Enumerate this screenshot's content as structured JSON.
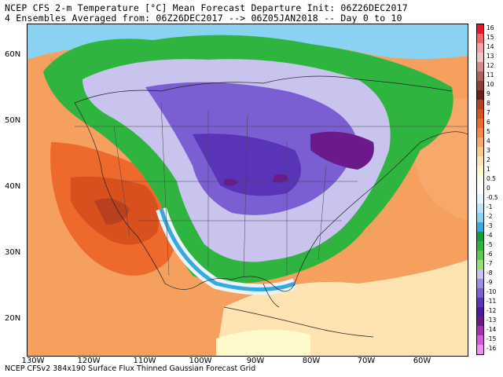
{
  "header": {
    "line1": "NCEP CFS 2-m Temperature [°C] Mean Forecast Departure Init: 06Z26DEC2017",
    "line2": "4 Ensembles Averaged from: 06Z26DEC2017 --> 06Z05JAN2018 -- Day 0 to 10"
  },
  "footer": "NCEP CFSv2 384x190 Surface Flux Thinned Gaussian Forecast Grid",
  "axes": {
    "lat_labels": [
      "60N",
      "50N",
      "40N",
      "30N",
      "20N"
    ],
    "lon_labels": [
      "130W",
      "120W",
      "110W",
      "100W",
      "90W",
      "80W",
      "70W",
      "60W"
    ]
  },
  "colorbar": {
    "labels": [
      "16",
      "15",
      "14",
      "13",
      "12",
      "11",
      "10",
      "9",
      "8",
      "7",
      "6",
      "5",
      "4",
      "3",
      "2",
      "1",
      "0.5",
      "0",
      "-0.5",
      "-1",
      "-2",
      "-3",
      "-4",
      "-5",
      "-6",
      "-7",
      "-8",
      "-9",
      "-10",
      "-11",
      "-12",
      "-13",
      "-14",
      "-15",
      "-16"
    ],
    "colors": [
      "#e8142c",
      "#f0646e",
      "#f5a3a8",
      "#f2c3c6",
      "#d08a8c",
      "#b0605c",
      "#8e3c34",
      "#6e1e16",
      "#b8401e",
      "#d8501e",
      "#ee6a2c",
      "#f58a48",
      "#f8a86a",
      "#fbc88e",
      "#fde4b2",
      "#fffacc",
      "#fdfdf0",
      "#ffffff",
      "#e8f6fc",
      "#bce6f8",
      "#8ad2f2",
      "#3aa8e0",
      "#1a9a3a",
      "#30b440",
      "#60c850",
      "#98dc78",
      "#c8c4ee",
      "#a08ee0",
      "#7a5ed2",
      "#5a34b8",
      "#4a1a9a",
      "#6a1a8a",
      "#a830b0",
      "#d85ad8",
      "#f08ef0"
    ]
  }
}
